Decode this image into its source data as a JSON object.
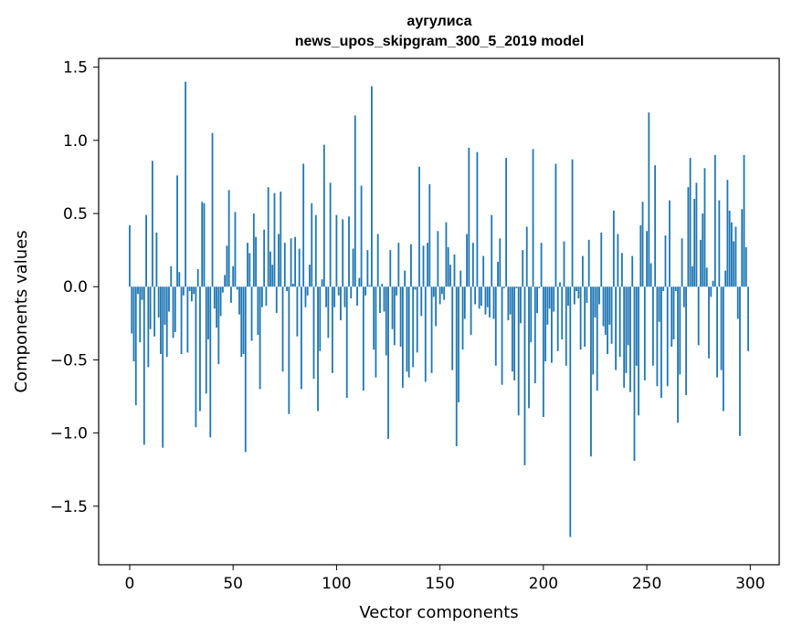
{
  "chart_data": {
    "type": "bar",
    "title": "аугулиса",
    "subtitle": "news_upos_skipgram_300_5_2019 model",
    "xlabel": "Vector components",
    "ylabel": "Components values",
    "xlim": [
      -15,
      314
    ],
    "ylim": [
      -1.9,
      1.56
    ],
    "xticks": [
      0,
      50,
      100,
      150,
      200,
      250,
      300
    ],
    "xtick_labels": [
      "0",
      "50",
      "100",
      "150",
      "200",
      "250",
      "300"
    ],
    "yticks": [
      1.5,
      1.0,
      0.5,
      0.0,
      -0.5,
      -1.0,
      -1.5
    ],
    "ytick_labels": [
      "1.5",
      "1.0",
      "0.5",
      "0.0",
      "−0.5",
      "−1.0",
      "−1.5"
    ],
    "grid": false,
    "bar_color": "#1f77b4",
    "values": [
      0.42,
      -0.32,
      -0.51,
      -0.81,
      -0.05,
      -0.38,
      -0.09,
      -1.08,
      0.49,
      -0.55,
      -0.29,
      0.86,
      -0.34,
      0.37,
      -0.21,
      -0.46,
      -1.1,
      -0.26,
      -0.48,
      -0.17,
      0.14,
      -0.35,
      -0.31,
      0.76,
      0.1,
      -0.46,
      -0.06,
      1.4,
      -0.45,
      -0.03,
      -0.1,
      -0.05,
      -0.96,
      0.12,
      -0.85,
      0.58,
      0.57,
      -0.73,
      -0.36,
      -1.03,
      1.05,
      -0.15,
      -0.28,
      -0.53,
      -0.2,
      -0.04,
      0.08,
      0.28,
      0.66,
      -0.11,
      0.14,
      0.51,
      -0.02,
      -0.19,
      -0.48,
      -0.46,
      -1.13,
      0.3,
      0.23,
      -0.37,
      0.5,
      0.34,
      -0.33,
      -0.7,
      -0.14,
      0.39,
      -0.13,
      0.68,
      0.24,
      0.15,
      0.64,
      -0.18,
      0.36,
      0.65,
      -0.58,
      0.3,
      -0.03,
      -0.87,
      0.33,
      0.02,
      0.34,
      -0.34,
      0.26,
      -0.7,
      0.84,
      -0.14,
      -0.06,
      0.15,
      0.57,
      -0.63,
      0.49,
      -0.85,
      -0.44,
      0.05,
      0.97,
      -0.14,
      -0.35,
      0.71,
      -0.59,
      -0.14,
      0.49,
      -0.06,
      -0.23,
      0.46,
      -0.14,
      -0.76,
      0.48,
      -0.08,
      0.26,
      1.17,
      -0.13,
      0.06,
      0.69,
      -0.71,
      -0.06,
      0.25,
      0.01,
      1.37,
      -0.43,
      -0.62,
      0.36,
      -0.18,
      0.02,
      -0.17,
      -0.47,
      -1.04,
      0.25,
      -0.29,
      -0.4,
      -0.06,
      0.3,
      -0.41,
      -0.69,
      0.11,
      -0.58,
      -0.62,
      0.29,
      -0.55,
      -0.02,
      -0.45,
      0.82,
      -0.2,
      0.28,
      -0.65,
      0.3,
      0.7,
      -0.59,
      -0.07,
      -0.27,
      0.38,
      -0.12,
      -0.05,
      -0.09,
      0.44,
      0.27,
      0.15,
      -0.57,
      0.22,
      -1.09,
      -0.79,
      0.11,
      -0.43,
      -0.22,
      0.36,
      0.95,
      -0.33,
      0.3,
      -0.12,
      0.92,
      -0.15,
      -0.13,
      0.21,
      -0.19,
      -0.14,
      -0.21,
      0.49,
      -0.22,
      -0.54,
      0.17,
      0.33,
      -0.67,
      -0.01,
      0.88,
      -0.23,
      -0.19,
      -0.58,
      -0.64,
      -0.01,
      -0.88,
      -0.25,
      0.25,
      -1.22,
      0.41,
      -0.83,
      -0.38,
      0.94,
      -0.66,
      -0.18,
      -0.01,
      0.3,
      -0.89,
      -0.51,
      -0.26,
      -0.15,
      -0.52,
      -0.17,
      0.84,
      -0.44,
      0.03,
      -0.36,
      0.31,
      -0.54,
      -0.13,
      -1.71,
      0.87,
      -0.12,
      -0.03,
      -0.08,
      -0.43,
      0.21,
      -0.41,
      -0.11,
      0.32,
      -1.16,
      -0.6,
      -0.21,
      -0.71,
      -0.12,
      0.37,
      -0.27,
      -0.33,
      -0.46,
      -0.26,
      -0.39,
      0.52,
      -0.57,
      0.36,
      -0.48,
      0.23,
      -0.69,
      -0.59,
      -0.4,
      -0.72,
      0.21,
      -1.19,
      -0.54,
      -0.88,
      0.42,
      0.58,
      -0.64,
      0.38,
      1.19,
      0.16,
      -0.54,
      0.83,
      -0.68,
      -0.24,
      -0.76,
      -0.03,
      0.35,
      -0.68,
      0.59,
      -0.41,
      -0.36,
      -0.03,
      -0.93,
      -0.6,
      0.33,
      -0.14,
      -0.74,
      0.68,
      0.88,
      0.14,
      0.6,
      0.71,
      -0.4,
      0.32,
      0.5,
      0.81,
      0.13,
      -0.49,
      -0.07,
      0.04,
      0.9,
      -0.62,
      0.59,
      -0.57,
      -0.85,
      0.11,
      0.73,
      0.52,
      0.44,
      0.31,
      0.41,
      -0.22,
      -1.02,
      0.53,
      0.9,
      0.27,
      -0.44
    ]
  }
}
